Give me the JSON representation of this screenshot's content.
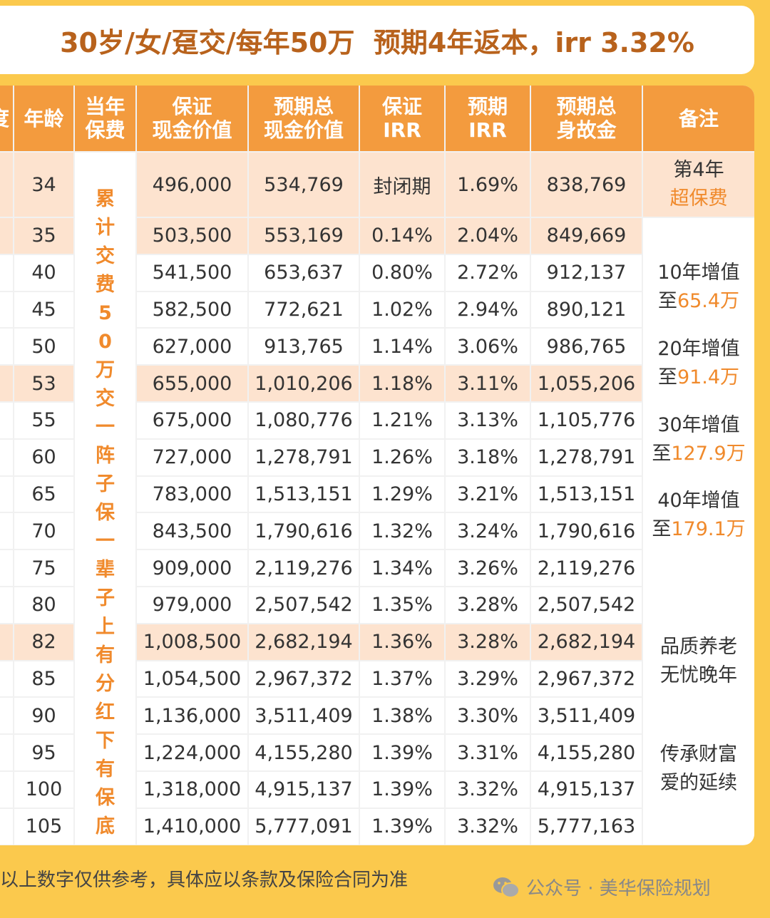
{
  "title": "30岁/女/趸交/每年50万  预期4年返本，irr 3.32%",
  "table": {
    "header": [
      [
        "度"
      ],
      [
        "年龄"
      ],
      [
        "当年",
        "保费"
      ],
      [
        "保证",
        "现金价值"
      ],
      [
        "预期总",
        "现金价值"
      ],
      [
        "保证",
        "IRR"
      ],
      [
        "预期",
        "IRR"
      ],
      [
        "预期总",
        "身故金"
      ],
      [
        "备注"
      ]
    ],
    "premium_note": "累计交费50万交一阵子保一辈子上有分红下有保底",
    "rows": [
      [
        "34",
        "496,000",
        "534,769",
        "封闭期",
        "1.69%",
        "838,769"
      ],
      [
        "35",
        "503,500",
        "553,169",
        "0.14%",
        "2.04%",
        "849,669"
      ],
      [
        "40",
        "541,500",
        "653,637",
        "0.80%",
        "2.72%",
        "912,137"
      ],
      [
        "45",
        "582,500",
        "772,621",
        "1.02%",
        "2.94%",
        "890,121"
      ],
      [
        "50",
        "627,000",
        "913,765",
        "1.14%",
        "3.06%",
        "986,765"
      ],
      [
        "53",
        "655,000",
        "1,010,206",
        "1.18%",
        "3.11%",
        "1,055,206"
      ],
      [
        "55",
        "675,000",
        "1,080,776",
        "1.21%",
        "3.13%",
        "1,105,776"
      ],
      [
        "60",
        "727,000",
        "1,278,791",
        "1.26%",
        "3.18%",
        "1,278,791"
      ],
      [
        "65",
        "783,000",
        "1,513,151",
        "1.29%",
        "3.21%",
        "1,513,151"
      ],
      [
        "70",
        "843,500",
        "1,790,616",
        "1.32%",
        "3.24%",
        "1,790,616"
      ],
      [
        "75",
        "909,000",
        "2,119,276",
        "1.34%",
        "3.26%",
        "2,119,276"
      ],
      [
        "80",
        "979,000",
        "2,507,542",
        "1.35%",
        "3.28%",
        "2,507,542"
      ],
      [
        "82",
        "1,008,500",
        "2,682,194",
        "1.36%",
        "3.28%",
        "2,682,194"
      ],
      [
        "85",
        "1,054,500",
        "2,967,372",
        "1.37%",
        "3.29%",
        "2,967,372"
      ],
      [
        "90",
        "1,136,000",
        "3,511,409",
        "1.38%",
        "3.30%",
        "3,511,409"
      ],
      [
        "95",
        "1,224,000",
        "4,155,280",
        "1.39%",
        "3.31%",
        "4,155,280"
      ],
      [
        "100",
        "1,318,000",
        "4,915,137",
        "1.39%",
        "3.32%",
        "4,915,137"
      ],
      [
        "105",
        "1,410,000",
        "5,777,091",
        "1.39%",
        "3.32%",
        "5,777,163"
      ]
    ],
    "notes": [
      {
        "lines": [
          [
            {
              "text": "第4年"
            }
          ],
          [
            {
              "text": "超保费",
              "color": "#f08a2c"
            }
          ]
        ]
      },
      {
        "lines": [
          [
            {
              "text": "10年增值"
            }
          ],
          [
            {
              "text": "至"
            },
            {
              "text": "65.4万",
              "color": "#f08a2c"
            }
          ]
        ]
      },
      {
        "lines": [
          [
            {
              "text": "20年增值"
            }
          ],
          [
            {
              "text": "至"
            },
            {
              "text": "91.4万",
              "color": "#f08a2c"
            }
          ]
        ]
      },
      {
        "lines": [
          [
            {
              "text": "30年增值"
            }
          ],
          [
            {
              "text": "至"
            },
            {
              "text": "127.9万",
              "color": "#f08a2c"
            }
          ]
        ]
      },
      {
        "lines": [
          [
            {
              "text": "40年增值"
            }
          ],
          [
            {
              "text": "至"
            },
            {
              "text": "179.1万",
              "color": "#f08a2c"
            }
          ]
        ]
      },
      {
        "lines": [
          [
            {
              "text": "品质养老"
            }
          ],
          [
            {
              "text": "无忧晚年"
            }
          ]
        ]
      },
      {
        "lines": [
          [
            {
              "text": "传承财富"
            }
          ],
          [
            {
              "text": "爱的延续"
            }
          ]
        ]
      }
    ]
  },
  "footer": "以上数字仅供参考，具体应以条款及保险合同为准",
  "watermark": "公众号 · 美华保险规划"
}
